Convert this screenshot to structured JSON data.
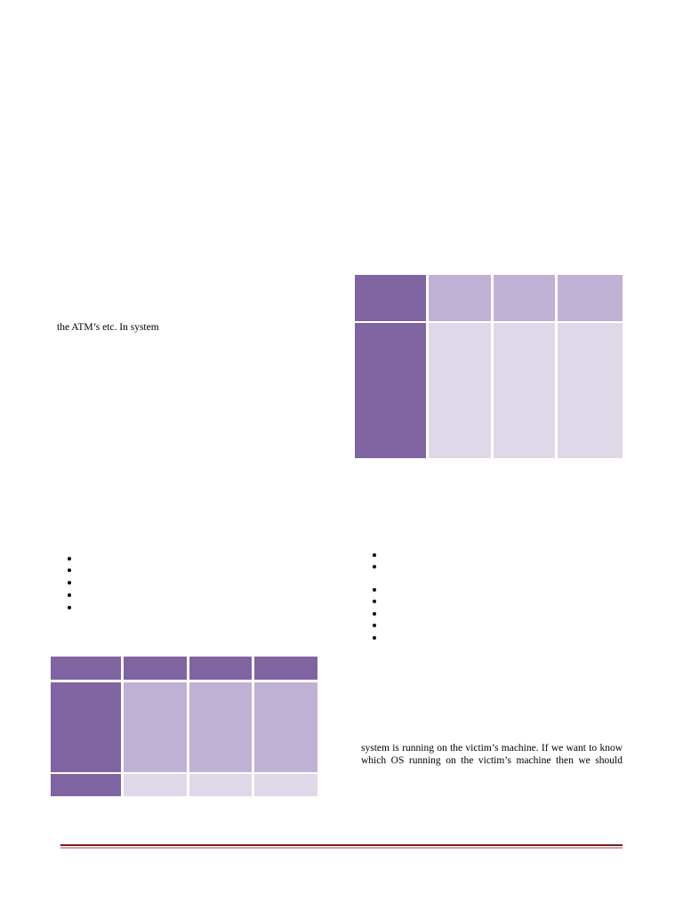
{
  "paragraphs": [
    {
      "lines": [
        "the ATM’s etc. In system"
      ]
    },
    {
      "lines": [
        "system is running on the victim’s machine. If we want to know",
        "which OS running on the victim’s machine then we should"
      ]
    }
  ]
}
